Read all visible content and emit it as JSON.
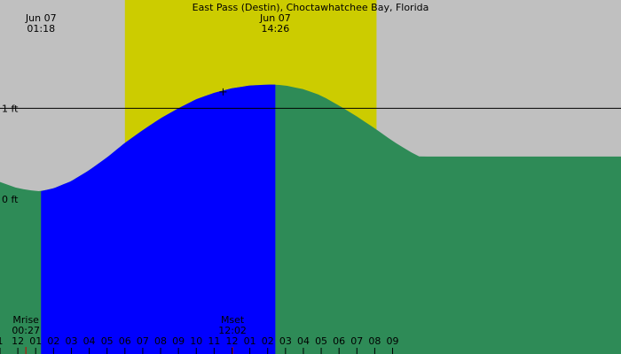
{
  "title": "East Pass (Destin), Choctawhatchee Bay, Florida",
  "colors": {
    "background": "#c0c0c0",
    "daylight": "#cccc00",
    "tide_fill_shaded": "#0000ff",
    "tide_fill": "#2e8b57",
    "line": "#000000",
    "moon_tick": "#cc0000"
  },
  "chart_data": {
    "type": "area",
    "title": "East Pass (Destin), Choctawhatchee Bay, Florida",
    "x_unit": "hour of day (Jun 07, 0 = midnight, 24 = midnight Jun 08)",
    "xlim": [
      -1.0,
      33.8
    ],
    "ylabel": "ft",
    "ylim": [
      -1.7,
      2.19
    ],
    "y_tick_labels": [
      {
        "value": 1,
        "label": "1 ft"
      },
      {
        "value": 0,
        "label": "0 ft"
      }
    ],
    "reference_line": {
      "value": 1,
      "label": "1 ft"
    },
    "series": [
      {
        "x": [
          -1.0,
          0.0,
          1.0,
          1.3,
          2.0,
          3.0,
          4.0,
          5.0,
          6.0,
          7.0,
          8.0,
          9.0,
          10.0,
          11.0,
          12.0,
          13.0,
          14.0,
          14.43,
          15.0,
          16.0,
          17.0,
          18.0,
          19.0,
          20.0,
          21.0,
          22.0,
          22.5
        ],
        "y": [
          0.19,
          0.12,
          0.09,
          0.09,
          0.12,
          0.2,
          0.32,
          0.46,
          0.62,
          0.76,
          0.89,
          1.0,
          1.1,
          1.17,
          1.22,
          1.25,
          1.26,
          1.26,
          1.25,
          1.21,
          1.14,
          1.03,
          0.91,
          0.78,
          0.64,
          0.52,
          0.47
        ]
      }
    ],
    "daylight": {
      "start": 6.0,
      "end": 20.1
    },
    "shaded_interval": {
      "start": 1.3,
      "end": 14.43
    },
    "extremes": [
      {
        "date": "Jun 07",
        "time": "01:18",
        "x": 1.3
      },
      {
        "date": "Jun 07",
        "time": "14:26",
        "x": 14.43
      }
    ],
    "current_time_marker": {
      "x": 11.5,
      "y": 1.18
    },
    "moon": [
      {
        "label": "Mrise",
        "time": "00:27",
        "x": 0.45
      },
      {
        "label": "Mset",
        "time": "12:02",
        "x": 12.03
      }
    ],
    "x_tick_labels": [
      "1",
      "12",
      "01",
      "02",
      "03",
      "04",
      "05",
      "06",
      "07",
      "08",
      "09",
      "10",
      "11",
      "12",
      "01",
      "02",
      "03",
      "04",
      "05",
      "06",
      "07",
      "08",
      "09"
    ],
    "x_tick_values": [
      -1,
      0,
      1,
      2,
      3,
      4,
      5,
      6,
      7,
      8,
      9,
      10,
      11,
      12,
      13,
      14,
      15,
      16,
      17,
      18,
      19,
      20,
      21
    ]
  }
}
